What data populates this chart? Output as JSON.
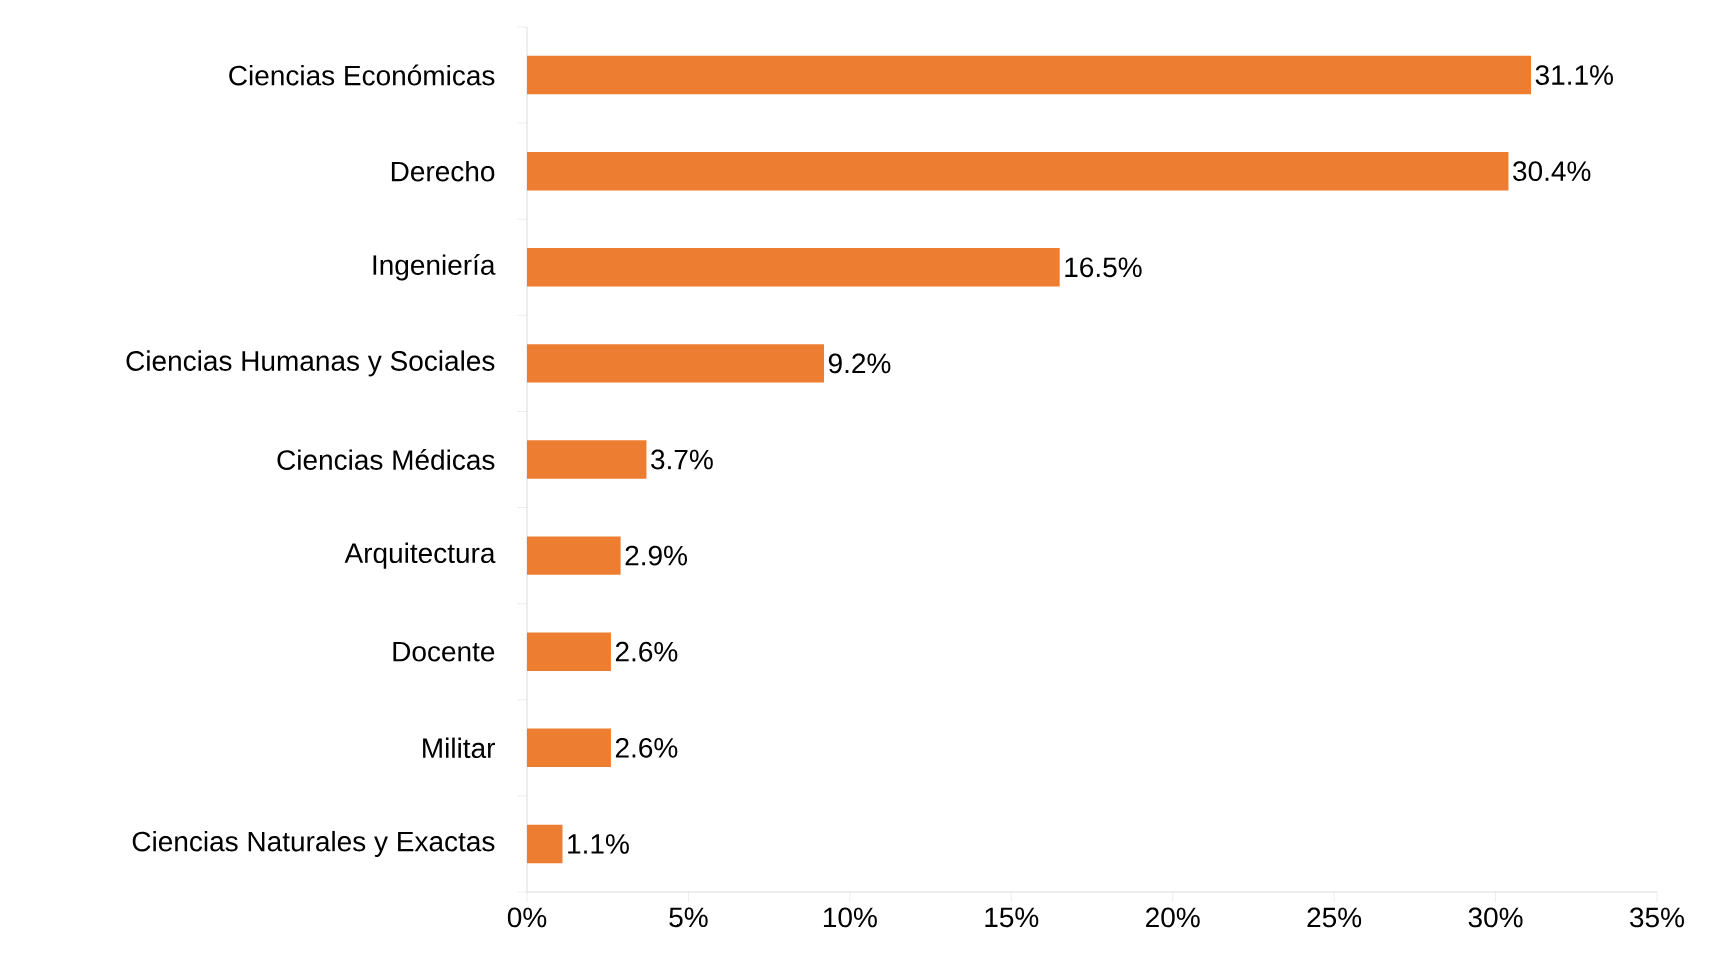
{
  "chart_data": {
    "type": "bar",
    "orientation": "horizontal",
    "categories": [
      "Ciencias Económicas",
      "Derecho",
      "Ingeniería",
      "Ciencias Humanas y Sociales",
      "Ciencias Médicas",
      "Arquitectura",
      "Docente",
      "Militar",
      "Ciencias Naturales y Exactas"
    ],
    "values": [
      31.1,
      30.4,
      16.5,
      9.2,
      3.7,
      2.9,
      2.6,
      2.6,
      1.1
    ],
    "value_labels": [
      "31.1%",
      "30.4%",
      "16.5%",
      "9.2%",
      "3.7%",
      "2.9%",
      "2.6%",
      "2.6%",
      "1.1%"
    ],
    "color": "#ed7d31",
    "xlim": [
      0,
      35
    ],
    "xticks": [
      {
        "value": 0,
        "label": "0%"
      },
      {
        "value": 5,
        "label": "5%"
      },
      {
        "value": 10,
        "label": "10%"
      },
      {
        "value": 15,
        "label": "15%"
      },
      {
        "value": 20,
        "label": "20%"
      },
      {
        "value": 25,
        "label": "25%"
      },
      {
        "value": 30,
        "label": "30%"
      },
      {
        "value": 35,
        "label": "35%"
      }
    ],
    "grid": false
  }
}
